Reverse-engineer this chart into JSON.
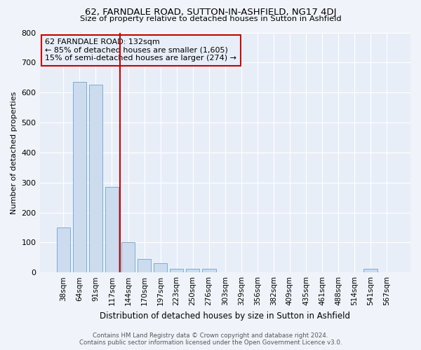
{
  "title": "62, FARNDALE ROAD, SUTTON-IN-ASHFIELD, NG17 4DJ",
  "subtitle": "Size of property relative to detached houses in Sutton in Ashfield",
  "xlabel": "Distribution of detached houses by size in Sutton in Ashfield",
  "ylabel": "Number of detached properties",
  "footer": "Contains HM Land Registry data © Crown copyright and database right 2024.\nContains public sector information licensed under the Open Government Licence v3.0.",
  "categories": [
    "38sqm",
    "64sqm",
    "91sqm",
    "117sqm",
    "144sqm",
    "170sqm",
    "197sqm",
    "223sqm",
    "250sqm",
    "276sqm",
    "303sqm",
    "329sqm",
    "356sqm",
    "382sqm",
    "409sqm",
    "435sqm",
    "461sqm",
    "488sqm",
    "514sqm",
    "541sqm",
    "567sqm"
  ],
  "values": [
    150,
    635,
    625,
    285,
    100,
    45,
    30,
    13,
    13,
    13,
    0,
    0,
    0,
    0,
    0,
    0,
    0,
    0,
    0,
    13,
    0
  ],
  "bar_color": "#ccdcee",
  "bar_edge_color": "#7aaed4",
  "background_color": "#f0f4fa",
  "plot_bg_color": "#e8eef8",
  "grid_color": "#ffffff",
  "vline_x": 3.5,
  "vline_color": "#cc0000",
  "annotation_title": "62 FARNDALE ROAD: 132sqm",
  "annotation_line1": "← 85% of detached houses are smaller (1,605)",
  "annotation_line2": "15% of semi-detached houses are larger (274) →",
  "annotation_box_color": "#cc0000",
  "ylim": [
    0,
    800
  ],
  "yticks": [
    0,
    100,
    200,
    300,
    400,
    500,
    600,
    700,
    800
  ]
}
